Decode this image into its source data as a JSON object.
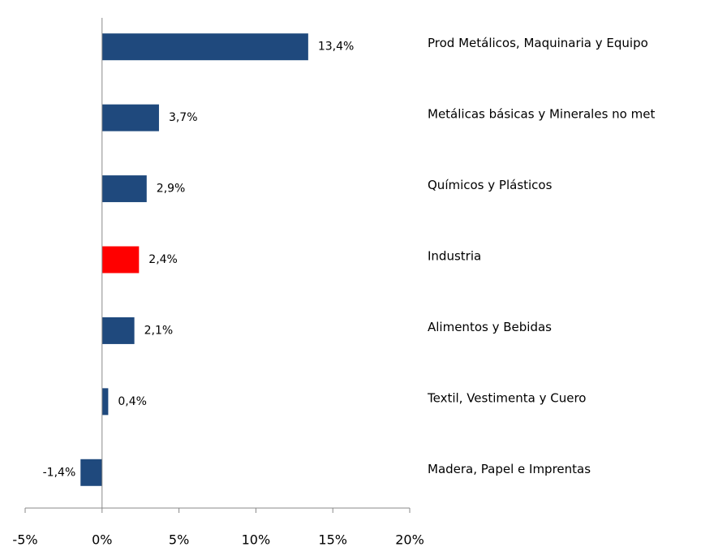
{
  "chart_data": {
    "type": "bar",
    "orientation": "horizontal",
    "categories": [
      "Prod Metálicos, Maquinaria y Equipo",
      "Metálicas básicas y Minerales no met",
      "Químicos y Plásticos",
      "Industria",
      "Alimentos y Bebidas",
      "Textil, Vestimenta y Cuero",
      "Madera, Papel e Imprentas"
    ],
    "values": [
      13.4,
      3.7,
      2.9,
      2.4,
      2.1,
      0.4,
      -1.4
    ],
    "value_labels": [
      "13,4%",
      "3,7%",
      "2,9%",
      "2,4%",
      "2,1%",
      "0,4%",
      "-1,4%"
    ],
    "colors": [
      "#1f497d",
      "#1f497d",
      "#1f497d",
      "#ff0000",
      "#1f497d",
      "#1f497d",
      "#1f497d"
    ],
    "xlim": [
      -5,
      20
    ],
    "xticks": [
      {
        "value": -5,
        "label": "-5%"
      },
      {
        "value": 0,
        "label": "0%"
      },
      {
        "value": 5,
        "label": "5%"
      },
      {
        "value": 10,
        "label": "10%"
      },
      {
        "value": 15,
        "label": "15%"
      },
      {
        "value": 20,
        "label": "20%"
      }
    ],
    "grid": false
  }
}
